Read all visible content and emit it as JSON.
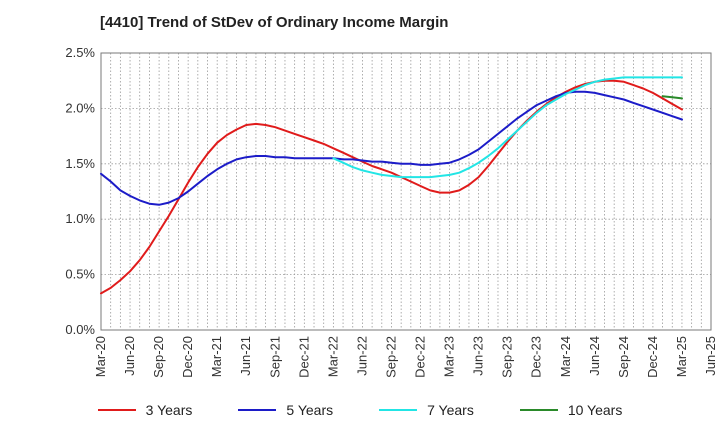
{
  "title": "[4410]  Trend of StDev of Ordinary Income Margin",
  "chart_data": {
    "type": "line",
    "title": "[4410]  Trend of StDev of Ordinary Income Margin",
    "xlabel": "",
    "ylabel": "",
    "x_ticks": [
      "Mar-20",
      "Jun-20",
      "Sep-20",
      "Dec-20",
      "Mar-21",
      "Jun-21",
      "Sep-21",
      "Dec-21",
      "Mar-22",
      "Jun-22",
      "Sep-22",
      "Dec-22",
      "Mar-23",
      "Jun-23",
      "Sep-23",
      "Dec-23",
      "Mar-24",
      "Jun-24",
      "Sep-24",
      "Dec-24",
      "Mar-25",
      "Jun-25"
    ],
    "y_ticks": [
      "0.0%",
      "0.5%",
      "1.0%",
      "1.5%",
      "2.0%",
      "2.5%"
    ],
    "ylim": [
      0,
      2.5
    ],
    "y_unit": "%",
    "grid": true,
    "legend_position": "bottom",
    "series": [
      {
        "name": "3 Years",
        "color": "#e01b1b",
        "x": [
          "Mar-20",
          "Apr-20",
          "May-20",
          "Jun-20",
          "Jul-20",
          "Aug-20",
          "Sep-20",
          "Oct-20",
          "Nov-20",
          "Dec-20",
          "Jan-21",
          "Feb-21",
          "Mar-21",
          "Apr-21",
          "May-21",
          "Jun-21",
          "Jul-21",
          "Aug-21",
          "Sep-21",
          "Oct-21",
          "Nov-21",
          "Dec-21",
          "Jan-22",
          "Feb-22",
          "Mar-22",
          "Apr-22",
          "May-22",
          "Jun-22",
          "Jul-22",
          "Aug-22",
          "Sep-22",
          "Oct-22",
          "Nov-22",
          "Dec-22",
          "Jan-23",
          "Feb-23",
          "Mar-23",
          "Apr-23",
          "May-23",
          "Jun-23",
          "Jul-23",
          "Aug-23",
          "Sep-23",
          "Oct-23",
          "Nov-23",
          "Dec-23",
          "Jan-24",
          "Feb-24",
          "Mar-24",
          "Apr-24",
          "May-24",
          "Jun-24",
          "Jul-24",
          "Aug-24",
          "Sep-24",
          "Oct-24",
          "Nov-24",
          "Dec-24",
          "Jan-25",
          "Feb-25",
          "Mar-25"
        ],
        "values": [
          0.33,
          0.38,
          0.45,
          0.53,
          0.63,
          0.75,
          0.89,
          1.03,
          1.18,
          1.33,
          1.47,
          1.59,
          1.69,
          1.76,
          1.81,
          1.85,
          1.86,
          1.85,
          1.83,
          1.8,
          1.77,
          1.74,
          1.71,
          1.68,
          1.64,
          1.6,
          1.56,
          1.52,
          1.48,
          1.45,
          1.42,
          1.38,
          1.34,
          1.3,
          1.26,
          1.24,
          1.24,
          1.26,
          1.31,
          1.38,
          1.48,
          1.59,
          1.7,
          1.8,
          1.89,
          1.97,
          2.04,
          2.1,
          2.15,
          2.19,
          2.22,
          2.24,
          2.25,
          2.25,
          2.24,
          2.21,
          2.18,
          2.14,
          2.09,
          2.04,
          1.99
        ]
      },
      {
        "name": "5 Years",
        "color": "#1c1cc8",
        "x": [
          "Mar-20",
          "Apr-20",
          "May-20",
          "Jun-20",
          "Jul-20",
          "Aug-20",
          "Sep-20",
          "Oct-20",
          "Nov-20",
          "Dec-20",
          "Jan-21",
          "Feb-21",
          "Mar-21",
          "Apr-21",
          "May-21",
          "Jun-21",
          "Jul-21",
          "Aug-21",
          "Sep-21",
          "Oct-21",
          "Nov-21",
          "Dec-21",
          "Jan-22",
          "Feb-22",
          "Mar-22",
          "Apr-22",
          "May-22",
          "Jun-22",
          "Jul-22",
          "Aug-22",
          "Sep-22",
          "Oct-22",
          "Nov-22",
          "Dec-22",
          "Jan-23",
          "Feb-23",
          "Mar-23",
          "Apr-23",
          "May-23",
          "Jun-23",
          "Jul-23",
          "Aug-23",
          "Sep-23",
          "Oct-23",
          "Nov-23",
          "Dec-23",
          "Jan-24",
          "Feb-24",
          "Mar-24",
          "Apr-24",
          "May-24",
          "Jun-24",
          "Jul-24",
          "Aug-24",
          "Sep-24",
          "Oct-24",
          "Nov-24",
          "Dec-24",
          "Jan-25",
          "Feb-25",
          "Mar-25"
        ],
        "values": [
          1.41,
          1.34,
          1.26,
          1.21,
          1.17,
          1.14,
          1.13,
          1.15,
          1.19,
          1.25,
          1.32,
          1.39,
          1.45,
          1.5,
          1.54,
          1.56,
          1.57,
          1.57,
          1.56,
          1.56,
          1.55,
          1.55,
          1.55,
          1.55,
          1.55,
          1.54,
          1.54,
          1.53,
          1.52,
          1.52,
          1.51,
          1.5,
          1.5,
          1.49,
          1.49,
          1.5,
          1.51,
          1.54,
          1.58,
          1.63,
          1.7,
          1.77,
          1.84,
          1.91,
          1.97,
          2.03,
          2.07,
          2.11,
          2.14,
          2.15,
          2.15,
          2.14,
          2.12,
          2.1,
          2.08,
          2.05,
          2.02,
          1.99,
          1.96,
          1.93,
          1.9
        ]
      },
      {
        "name": "7 Years",
        "color": "#22e5e5",
        "x": [
          "Mar-22",
          "Apr-22",
          "May-22",
          "Jun-22",
          "Jul-22",
          "Aug-22",
          "Sep-22",
          "Oct-22",
          "Nov-22",
          "Dec-22",
          "Jan-23",
          "Feb-23",
          "Mar-23",
          "Apr-23",
          "May-23",
          "Jun-23",
          "Jul-23",
          "Aug-23",
          "Sep-23",
          "Oct-23",
          "Nov-23",
          "Dec-23",
          "Jan-24",
          "Feb-24",
          "Mar-24",
          "Apr-24",
          "May-24",
          "Jun-24",
          "Jul-24",
          "Aug-24",
          "Sep-24",
          "Oct-24",
          "Nov-24",
          "Dec-24",
          "Jan-25",
          "Feb-25",
          "Mar-25"
        ],
        "values": [
          1.55,
          1.51,
          1.47,
          1.44,
          1.42,
          1.4,
          1.39,
          1.38,
          1.38,
          1.38,
          1.38,
          1.39,
          1.4,
          1.42,
          1.46,
          1.51,
          1.57,
          1.64,
          1.72,
          1.8,
          1.88,
          1.96,
          2.03,
          2.08,
          2.13,
          2.17,
          2.21,
          2.24,
          2.26,
          2.27,
          2.28,
          2.28,
          2.28,
          2.28,
          2.28,
          2.28,
          2.28
        ]
      },
      {
        "name": "10 Years",
        "color": "#2a8a2a",
        "x": [
          "Jan-25",
          "Feb-25",
          "Mar-25"
        ],
        "values": [
          2.11,
          2.1,
          2.09
        ]
      }
    ]
  },
  "legend": {
    "items": [
      {
        "label": "3 Years",
        "color": "#e01b1b"
      },
      {
        "label": "5 Years",
        "color": "#1c1cc8"
      },
      {
        "label": "7 Years",
        "color": "#22e5e5"
      },
      {
        "label": "10 Years",
        "color": "#2a8a2a"
      }
    ]
  }
}
